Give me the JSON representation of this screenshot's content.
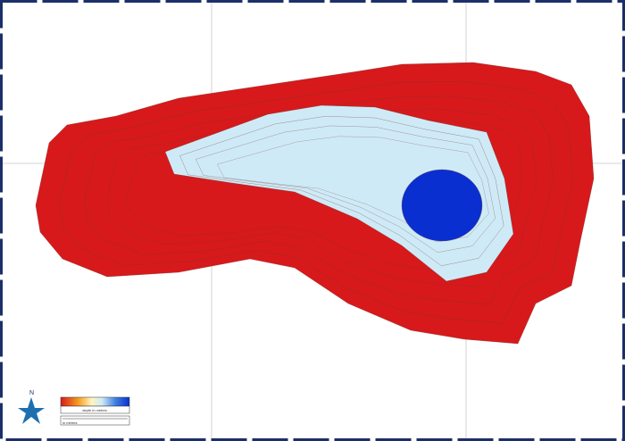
{
  "north": "N",
  "legend": {
    "title": "depth in metres"
  },
  "scale": {
    "label": "in metres"
  }
}
